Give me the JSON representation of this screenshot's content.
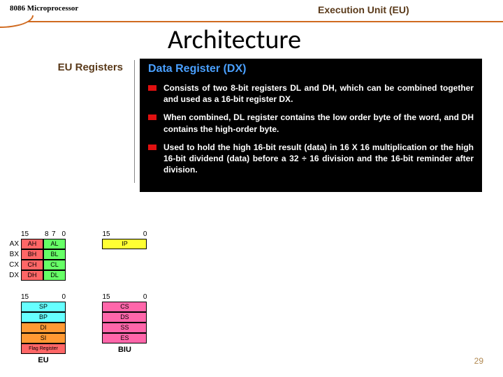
{
  "header": {
    "doc_label": "8086 Microprocessor",
    "unit_title": "Execution Unit (EU)",
    "main_title": "Architecture",
    "sidebar_label": "EU Registers"
  },
  "content": {
    "heading": "Data Register (DX)",
    "bullets": [
      "Consists of two 8-bit registers DL and DH, which can be combined together and used as a 16-bit register DX.",
      "When combined, DL register contains the low order byte of the word, and DH contains the high-order byte.",
      "Used to hold the high 16-bit result (data) in 16 X 16 multiplication or the high 16-bit dividend (data) before a 32 ÷ 16 division and the 16-bit reminder after division."
    ]
  },
  "registers": {
    "gp": [
      {
        "name": "AX",
        "high": "AH",
        "low": "AL",
        "hcolor": "#ff6666",
        "lcolor": "#66ff66"
      },
      {
        "name": "BX",
        "high": "BH",
        "low": "BL",
        "hcolor": "#ff6666",
        "lcolor": "#66ff66"
      },
      {
        "name": "CX",
        "high": "CH",
        "low": "CL",
        "hcolor": "#ff6666",
        "lcolor": "#66ff66"
      },
      {
        "name": "DX",
        "high": "DH",
        "low": "DL",
        "hcolor": "#ff6666",
        "lcolor": "#66ff66"
      }
    ],
    "ip": {
      "name": "",
      "label": "IP",
      "color": "#ffff33"
    },
    "ptr_idx": [
      {
        "label": "SP",
        "color": "#66ffff"
      },
      {
        "label": "BP",
        "color": "#66ffff"
      },
      {
        "label": "DI",
        "color": "#ff9933"
      },
      {
        "label": "SI",
        "color": "#ff9933"
      },
      {
        "label": "Flag Register",
        "color": "#ff6666"
      }
    ],
    "seg": [
      {
        "label": "CS",
        "color": "#ff66aa"
      },
      {
        "label": "DS",
        "color": "#ff66aa"
      },
      {
        "label": "SS",
        "color": "#ff66aa"
      },
      {
        "label": "ES",
        "color": "#ff66aa"
      }
    ],
    "bits_split": {
      "hi": "15",
      "m1": "8",
      "m2": "7",
      "lo": "0"
    },
    "bits_full": {
      "hi": "15",
      "lo": "0"
    },
    "eu_label": "EU",
    "biu_label": "BIU"
  },
  "page_number": "29",
  "colors": {
    "accent": "#d06a1f",
    "heading_blue": "#4aa0ff",
    "bullet_red": "#e01010"
  }
}
